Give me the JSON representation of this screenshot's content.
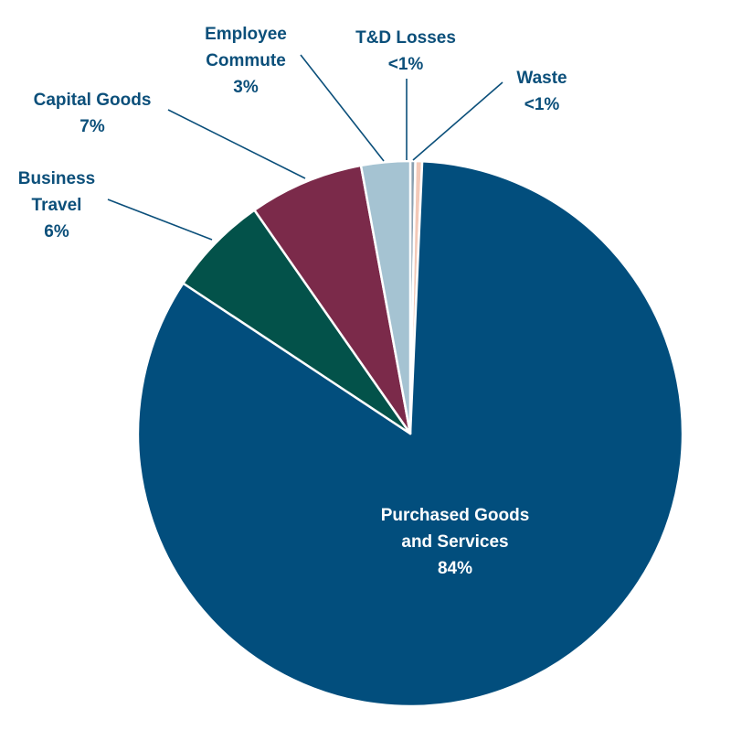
{
  "chart_data": {
    "type": "pie",
    "slices": [
      {
        "label_lines": [
          "Purchased Goods",
          "and Services"
        ],
        "value_label": "84%",
        "value": 83.6,
        "color": "#024e7d",
        "label_color": "#ffffff"
      },
      {
        "label_lines": [
          "Business",
          "Travel"
        ],
        "value_label": "6%",
        "value": 6.0,
        "color": "#03524a",
        "label_color": "#0b4f7a"
      },
      {
        "label_lines": [
          "Capital Goods"
        ],
        "value_label": "7%",
        "value": 6.8,
        "color": "#7b2a4a",
        "label_color": "#0b4f7a"
      },
      {
        "label_lines": [
          "Employee",
          "Commute"
        ],
        "value_label": "3%",
        "value": 2.9,
        "color": "#a5c3d2",
        "label_color": "#0b4f7a"
      },
      {
        "label_lines": [
          "T&D Losses"
        ],
        "value_label": "<1%",
        "value": 0.4,
        "color": "#f3c9b8",
        "label_color": "#0b4f7a"
      },
      {
        "label_lines": [
          "Waste"
        ],
        "value_label": "<1%",
        "value": 0.3,
        "color": "#8aa0b0",
        "label_color": "#0b4f7a"
      }
    ],
    "order": "clockwise from 12 o'clock, starting with Waste",
    "legend": "none",
    "leader_line_color": "#0b4f7a"
  }
}
